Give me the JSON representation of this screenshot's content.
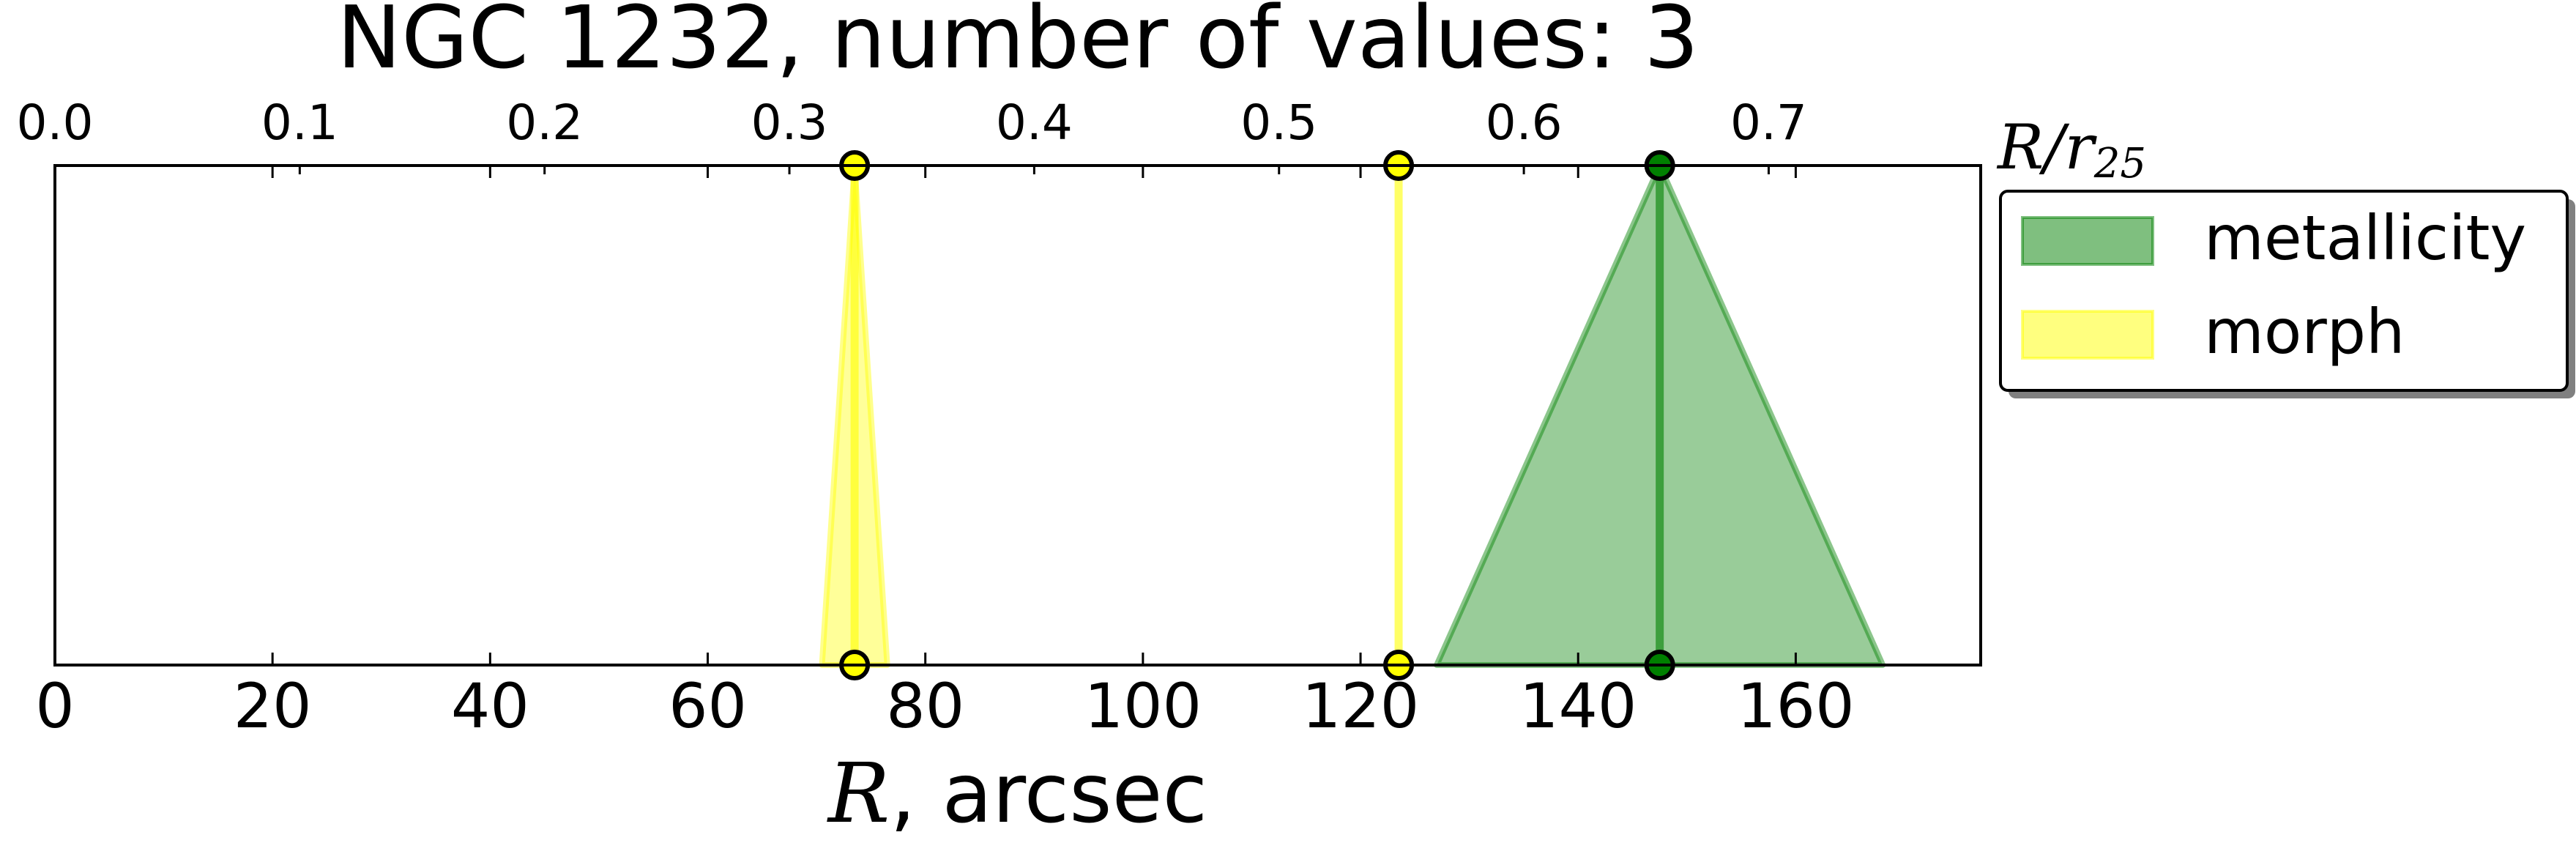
{
  "chart_data": {
    "type": "area",
    "title": "NGC 1232, number of values: 3",
    "xlabel": {
      "symbol": "R",
      "unit": ", arcsec"
    },
    "xlim": [
      0,
      177
    ],
    "xticks": [
      0,
      20,
      40,
      60,
      80,
      100,
      120,
      140,
      160
    ],
    "x2label": {
      "symbol": "R/r",
      "sub": "25"
    },
    "x2lim": [
      0.0,
      0.7866
    ],
    "x2ticks": [
      "0.0",
      "0.1",
      "0.2",
      "0.3",
      "0.4",
      "0.5",
      "0.6",
      "0.7"
    ],
    "grid": false,
    "legend_position": "upper-right, outside the axes",
    "series": [
      {
        "name": "metallicity",
        "color": "#008000",
        "values": [
          {
            "r": 147.5,
            "base_min": 127,
            "base_max": 168
          }
        ]
      },
      {
        "name": "morph",
        "color": "#ffff00",
        "values": [
          {
            "r": 73.5,
            "base_min": 70.5,
            "base_max": 76.5
          },
          {
            "r": 123.5,
            "base_min": 123.5,
            "base_max": 123.5
          }
        ]
      }
    ]
  }
}
